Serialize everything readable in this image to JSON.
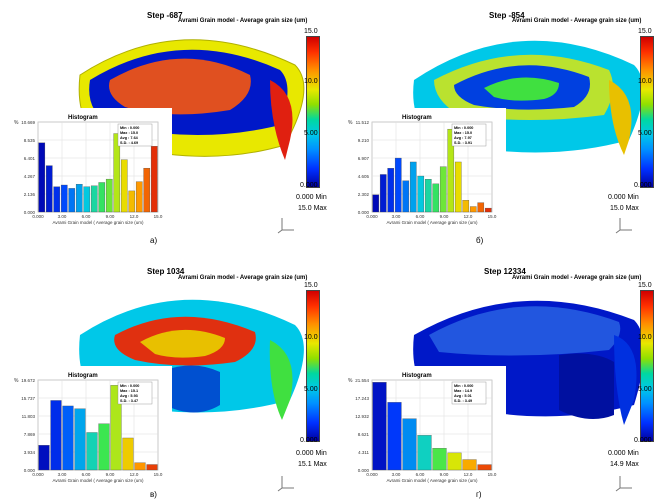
{
  "colors": {
    "red": "#e02010",
    "blue": "#0018c8",
    "yellow": "#e8e800",
    "green": "#40e040",
    "cyan": "#00c8e8"
  },
  "colorbar": {
    "ticks": [
      "15.0",
      "10.0",
      "5.00",
      "0.000"
    ]
  },
  "hist_label": "Histogram",
  "hist_xlabel": "Avrami Grain model ( Average grain size (um)",
  "hist_yunit": "%",
  "panels": [
    {
      "step": "Step -687",
      "title": "Avrami Grain model - Average grain size (um)",
      "min": "0.000  Min",
      "max": "15.0  Max",
      "sub": "a)",
      "stats": [
        "Min : 0.000",
        "Max : 15.0",
        "Avg : 7.64",
        "S.D. : 4.69"
      ]
    },
    {
      "step": "Step -854",
      "title": "Avrami Grain model - Average grain size (um)",
      "min": "0.000  Min",
      "max": "15.0  Max",
      "sub": "б)",
      "stats": [
        "Min : 0.000",
        "Max : 15.0",
        "Avg : 7.97",
        "S.D. : 3.91"
      ]
    },
    {
      "step": "Step 1034",
      "title": "Avrami Grain model - Average grain size (um)",
      "min": "0.000  Min",
      "max": "15.1  Max",
      "sub": "в)",
      "stats": [
        "Min : 0.000",
        "Max : 15.1",
        "Avg : 5.93",
        "S.D. : 3.47"
      ]
    },
    {
      "step": "Step 12334",
      "title": "Avrami Grain model - Average grain size (um)",
      "min": "0.000  Min",
      "max": "14.9  Max",
      "sub": "г)",
      "stats": [
        "Min : 0.000",
        "Max : 14.9",
        "Avg : 5.01",
        "S.D. : 3.49"
      ]
    }
  ],
  "chart_data": [
    {
      "type": "bar",
      "title": "Histogram",
      "xlabel": "Avrami Grain model ( Average grain size (um)",
      "ylabel": "%",
      "xticks": [
        "0.000",
        "3.00",
        "6.00",
        "9.00",
        "12.0",
        "15.0"
      ],
      "yticks": [
        "0.000",
        "2.136",
        "4.267",
        "6.401",
        "8.535",
        "10.669"
      ],
      "ylim": [
        0,
        10.669
      ],
      "values": [
        8.2,
        5.5,
        3.0,
        3.2,
        2.8,
        3.3,
        3.0,
        3.1,
        3.5,
        3.9,
        9.3,
        6.2,
        2.5,
        3.6,
        5.2,
        7.8
      ]
    },
    {
      "type": "bar",
      "title": "Histogram",
      "xlabel": "Avrami Grain model ( Average grain size (um)",
      "ylabel": "%",
      "xticks": [
        "0.000",
        "3.00",
        "6.00",
        "9.00",
        "12.0",
        "15.0"
      ],
      "yticks": [
        "0.000",
        "2.302",
        "4.605",
        "6.907",
        "9.210",
        "11.512"
      ],
      "ylim": [
        0,
        11.512
      ],
      "values": [
        2.2,
        4.8,
        5.6,
        6.9,
        4.0,
        6.4,
        4.6,
        4.2,
        3.6,
        5.8,
        10.6,
        6.4,
        1.5,
        0.7,
        1.2,
        0.5
      ]
    },
    {
      "type": "bar",
      "title": "Histogram",
      "xlabel": "Avrami Grain model ( Average grain size (um)",
      "ylabel": "%",
      "xticks": [
        "0.000",
        "3.00",
        "6.00",
        "9.00",
        "12.0",
        "15.0"
      ],
      "yticks": [
        "0.000",
        "3.934",
        "7.869",
        "11.803",
        "15.737",
        "19.672"
      ],
      "ylim": [
        0,
        19.672
      ],
      "values": [
        5.4,
        15.2,
        14.0,
        13.4,
        8.2,
        10.1,
        18.5,
        7.0,
        1.6,
        1.2
      ]
    },
    {
      "type": "bar",
      "title": "Histogram",
      "xlabel": "Avrami Grain model ( Average grain size (um)",
      "ylabel": "%",
      "xticks": [
        "0.000",
        "3.00",
        "6.00",
        "9.00",
        "12.0",
        "15.0"
      ],
      "yticks": [
        "0.000",
        "4.311",
        "8.621",
        "12.932",
        "17.243",
        "21.554"
      ],
      "ylim": [
        0,
        21.554
      ],
      "values": [
        21.0,
        16.2,
        12.3,
        8.3,
        5.2,
        4.1,
        2.5,
        1.3
      ]
    }
  ]
}
